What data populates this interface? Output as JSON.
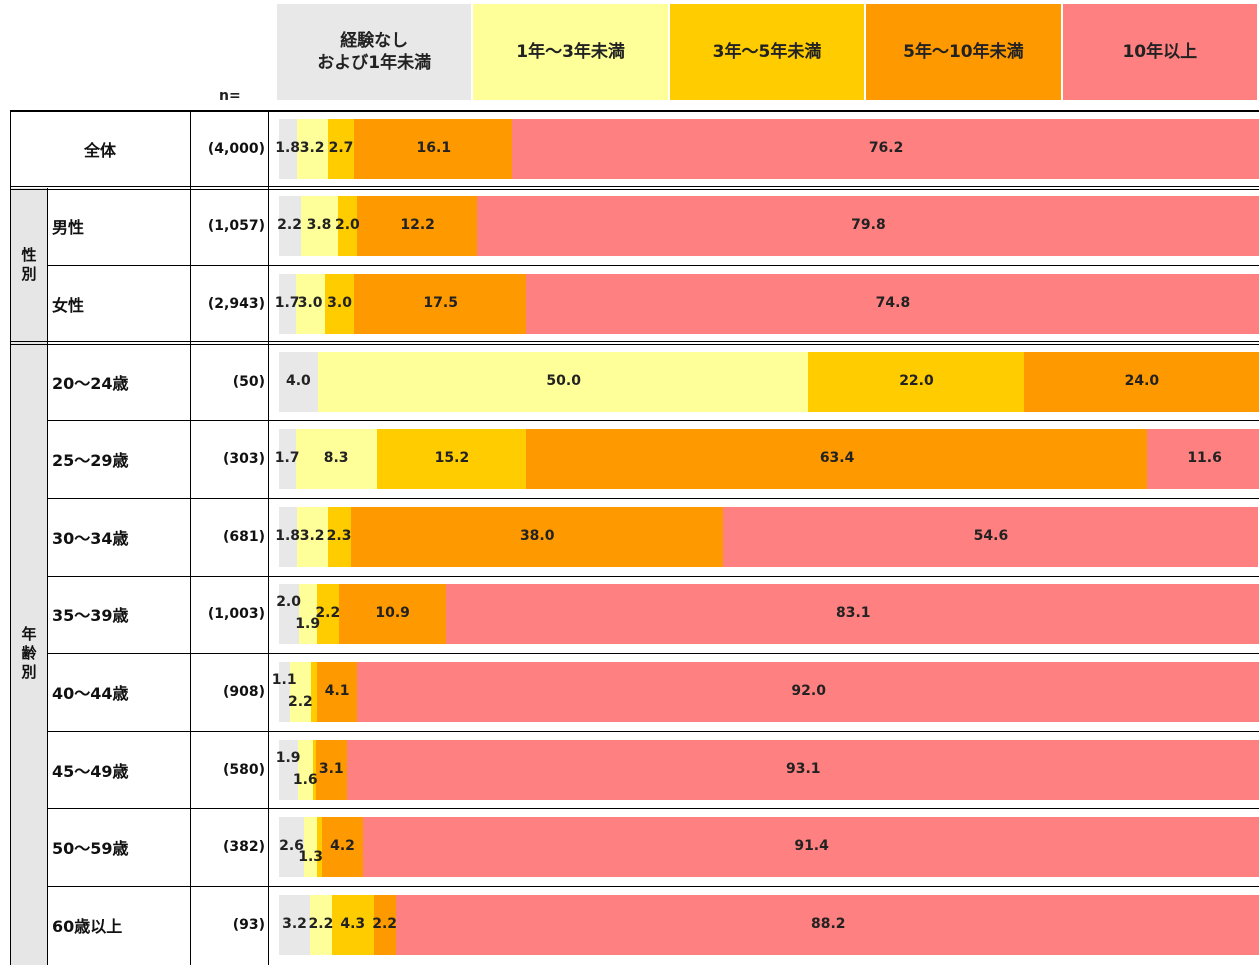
{
  "chart_data": {
    "type": "bar",
    "stacked": true,
    "orientation": "horizontal",
    "n_header": "n=",
    "legend": [
      {
        "label": "経験なし\nおよび1年未満",
        "color": "#e8e8e8"
      },
      {
        "label": "1年～3年未満",
        "color": "#ffff99"
      },
      {
        "label": "3年～5年未満",
        "color": "#ffcc00"
      },
      {
        "label": "5年～10年未満",
        "color": "#ff9900"
      },
      {
        "label": "10年以上",
        "color": "#ff8080"
      }
    ],
    "groups": [
      {
        "label": "",
        "rows": [
          0
        ]
      },
      {
        "label": "性\n別",
        "rows": [
          1,
          2
        ]
      },
      {
        "label": "年\n齢\n別",
        "rows": [
          3,
          4,
          5,
          6,
          7,
          8,
          9,
          10
        ]
      }
    ],
    "rows": [
      {
        "label": "全体",
        "n": "(4,000)",
        "values": [
          1.8,
          3.2,
          2.7,
          16.1,
          76.2
        ],
        "labels": [
          "1.8",
          "3.2",
          "2.7",
          "16.1",
          "76.2"
        ]
      },
      {
        "label": "男性",
        "n": "(1,057)",
        "values": [
          2.2,
          3.8,
          2.0,
          12.2,
          79.8
        ],
        "labels": [
          "2.2",
          "3.8",
          "2.0",
          "12.2",
          "79.8"
        ]
      },
      {
        "label": "女性",
        "n": "(2,943)",
        "values": [
          1.7,
          3.0,
          3.0,
          17.5,
          74.8
        ],
        "labels": [
          "1.7",
          "3.0",
          "3.0",
          "17.5",
          "74.8"
        ]
      },
      {
        "label": "20～24歳",
        "n": "(50)",
        "values": [
          4.0,
          50.0,
          22.0,
          24.0,
          0
        ],
        "labels": [
          "4.0",
          "50.0",
          "22.0",
          "24.0",
          ""
        ]
      },
      {
        "label": "25～29歳",
        "n": "(303)",
        "values": [
          1.7,
          8.3,
          15.2,
          63.4,
          11.6
        ],
        "labels": [
          "1.7",
          "8.3",
          "15.2",
          "63.4",
          "11.6"
        ]
      },
      {
        "label": "30～34歳",
        "n": "(681)",
        "values": [
          1.8,
          3.2,
          2.3,
          38.0,
          54.6
        ],
        "labels": [
          "1.8",
          "3.2",
          "2.3",
          "38.0",
          "54.6"
        ]
      },
      {
        "label": "35～39歳",
        "n": "(1,003)",
        "values": [
          2.0,
          1.9,
          2.2,
          10.9,
          83.1
        ],
        "labels": [
          "2.0",
          "1.9",
          "2.2",
          "10.9",
          "83.1"
        ]
      },
      {
        "label": "40～44歳",
        "n": "(908)",
        "values": [
          1.1,
          2.2,
          0.6,
          4.1,
          92.0
        ],
        "labels": [
          "1.1",
          "2.2",
          "",
          "4.1",
          "92.0"
        ]
      },
      {
        "label": "45～49歳",
        "n": "(580)",
        "values": [
          1.9,
          1.6,
          0.3,
          3.1,
          93.1
        ],
        "labels": [
          "1.9",
          "1.6",
          "",
          "3.1",
          "93.1"
        ]
      },
      {
        "label": "50～59歳",
        "n": "(382)",
        "values": [
          2.6,
          1.3,
          0.5,
          4.2,
          91.4
        ],
        "labels": [
          "2.6",
          "1.3",
          "",
          "4.2",
          "91.4"
        ]
      },
      {
        "label": "60歳以上",
        "n": "(93)",
        "values": [
          3.2,
          2.2,
          4.3,
          2.2,
          88.2
        ],
        "labels": [
          "3.2",
          "2.2",
          "4.3",
          "2.2",
          "88.2"
        ]
      }
    ]
  }
}
